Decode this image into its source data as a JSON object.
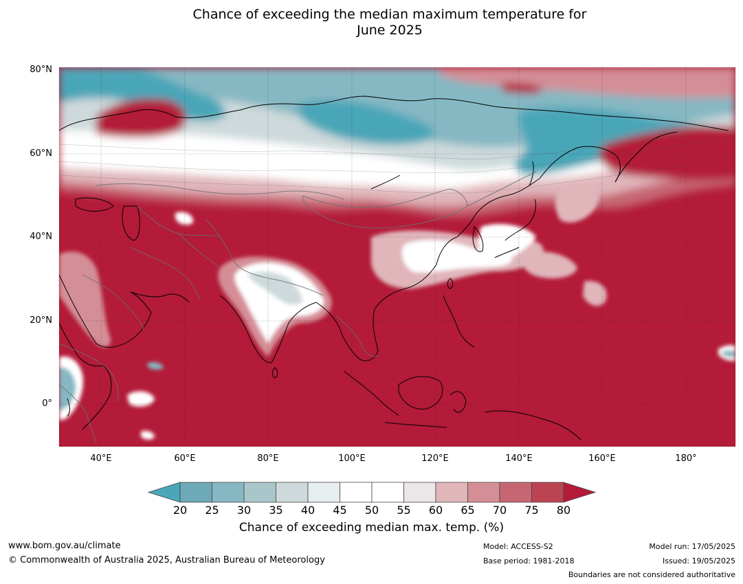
{
  "title": {
    "line1": "Chance of exceeding the median maximum temperature for",
    "line2": "June 2025"
  },
  "axes": {
    "lat_labels": [
      "80°N",
      "60°N",
      "40°N",
      "20°N",
      "0°"
    ],
    "lon_labels": [
      "40°E",
      "60°E",
      "80°E",
      "100°E",
      "120°E",
      "140°E",
      "160°E",
      "180°"
    ]
  },
  "map_extent": {
    "lon_min": 30,
    "lon_max": 192,
    "lat_min": -10,
    "lat_max": 80
  },
  "colorbar": {
    "title": "Chance of exceeding median max. temp. (%)",
    "ticks": [
      "20",
      "25",
      "30",
      "35",
      "40",
      "45",
      "50",
      "55",
      "60",
      "65",
      "70",
      "75",
      "80"
    ],
    "colors": {
      "below_20": "#4aa6b8",
      "20_25": "#6da9b6",
      "25_30": "#86b8c3",
      "30_35": "#a9c7cb",
      "35_40": "#cdd9db",
      "40_45": "#e7eef0",
      "45_50": "#ffffff",
      "50_55": "#ffffff",
      "55_60": "#ebe6e7",
      "60_65": "#e0b6bb",
      "65_70": "#d48e96",
      "70_75": "#c66672",
      "75_80": "#bc4452",
      "above_80": "#b31b38"
    }
  },
  "footer": {
    "url": "www.bom.gov.au/climate",
    "copyright": "© Commonwealth of Australia 2025, Australian Bureau of Meteorology",
    "model": "Model: ACCESS-S2",
    "base_period": "Base period: 1981-2018",
    "model_run": "Model run: 17/05/2025",
    "issued": "Issued: 19/05/2025",
    "disclaimer": "Boundaries are not considered authoritative"
  }
}
